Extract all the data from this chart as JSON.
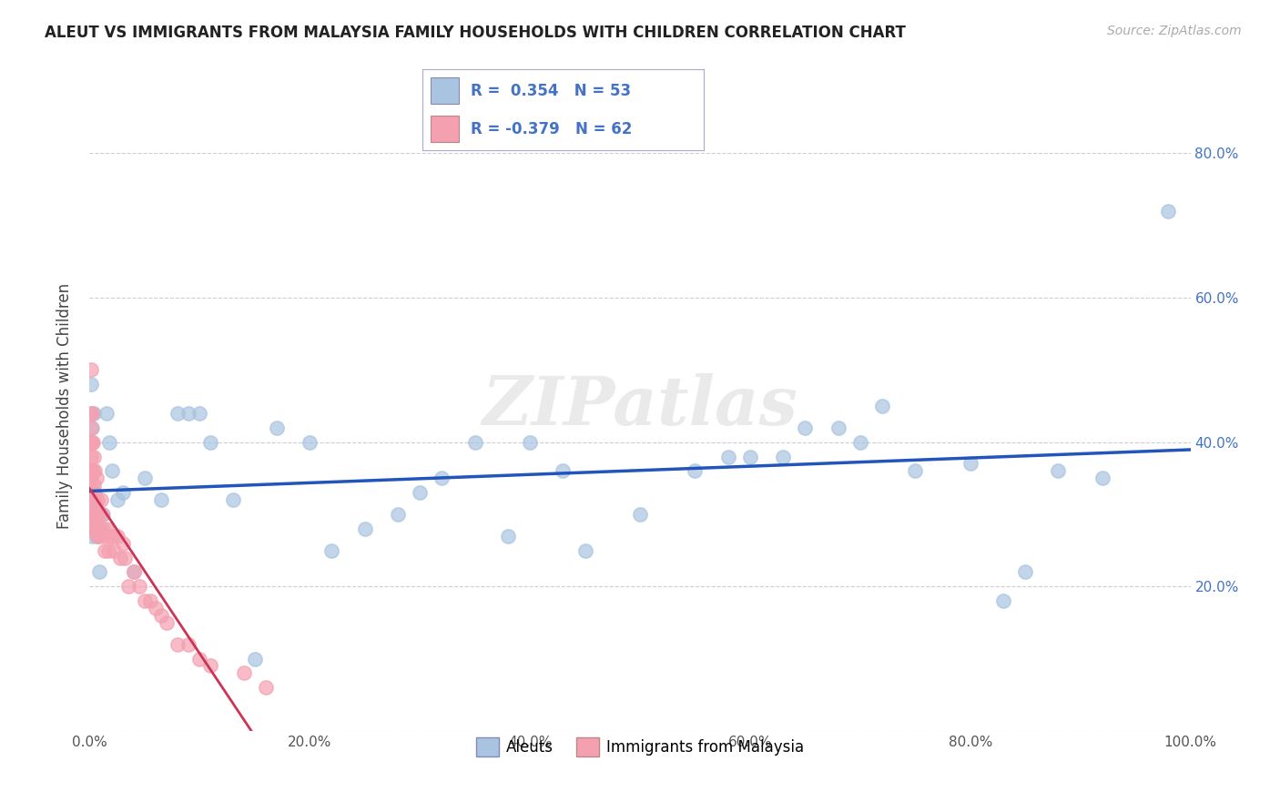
{
  "title": "ALEUT VS IMMIGRANTS FROM MALAYSIA FAMILY HOUSEHOLDS WITH CHILDREN CORRELATION CHART",
  "source": "Source: ZipAtlas.com",
  "ylabel": "Family Households with Children",
  "legend_labels": [
    "Aleuts",
    "Immigrants from Malaysia"
  ],
  "r_aleuts": 0.354,
  "n_aleuts": 53,
  "r_malaysia": -0.379,
  "n_malaysia": 62,
  "aleuts_color": "#a8c4e0",
  "malaysia_color": "#f4a0b0",
  "aleuts_line_color": "#2255bb",
  "malaysia_line_color": "#cc3355",
  "background_color": "#ffffff",
  "watermark": "ZIPatlas",
  "aleuts_x": [
    0.001,
    0.002,
    0.002,
    0.003,
    0.004,
    0.005,
    0.006,
    0.007,
    0.008,
    0.009,
    0.012,
    0.015,
    0.018,
    0.02,
    0.025,
    0.03,
    0.04,
    0.05,
    0.065,
    0.08,
    0.09,
    0.1,
    0.11,
    0.13,
    0.15,
    0.17,
    0.2,
    0.22,
    0.25,
    0.28,
    0.3,
    0.32,
    0.35,
    0.38,
    0.4,
    0.43,
    0.45,
    0.5,
    0.55,
    0.58,
    0.6,
    0.63,
    0.65,
    0.68,
    0.7,
    0.72,
    0.75,
    0.8,
    0.83,
    0.85,
    0.88,
    0.92,
    0.98
  ],
  "aleuts_y": [
    0.48,
    0.42,
    0.27,
    0.31,
    0.44,
    0.33,
    0.27,
    0.28,
    0.28,
    0.22,
    0.3,
    0.44,
    0.4,
    0.36,
    0.32,
    0.33,
    0.22,
    0.35,
    0.32,
    0.44,
    0.44,
    0.44,
    0.4,
    0.32,
    0.1,
    0.42,
    0.4,
    0.25,
    0.28,
    0.3,
    0.33,
    0.35,
    0.4,
    0.27,
    0.4,
    0.36,
    0.25,
    0.3,
    0.36,
    0.38,
    0.38,
    0.38,
    0.42,
    0.42,
    0.4,
    0.45,
    0.36,
    0.37,
    0.18,
    0.22,
    0.36,
    0.35,
    0.72
  ],
  "malaysia_x": [
    0.001,
    0.001,
    0.001,
    0.001,
    0.001,
    0.001,
    0.001,
    0.001,
    0.001,
    0.001,
    0.001,
    0.002,
    0.002,
    0.002,
    0.002,
    0.002,
    0.002,
    0.003,
    0.003,
    0.003,
    0.003,
    0.004,
    0.004,
    0.004,
    0.005,
    0.005,
    0.005,
    0.006,
    0.006,
    0.007,
    0.007,
    0.008,
    0.008,
    0.009,
    0.01,
    0.011,
    0.012,
    0.013,
    0.014,
    0.015,
    0.017,
    0.018,
    0.02,
    0.022,
    0.025,
    0.028,
    0.03,
    0.032,
    0.035,
    0.04,
    0.045,
    0.05,
    0.055,
    0.06,
    0.065,
    0.07,
    0.08,
    0.09,
    0.1,
    0.11,
    0.14,
    0.16
  ],
  "malaysia_y": [
    0.5,
    0.44,
    0.42,
    0.4,
    0.38,
    0.36,
    0.35,
    0.33,
    0.31,
    0.3,
    0.28,
    0.44,
    0.4,
    0.36,
    0.33,
    0.3,
    0.28,
    0.4,
    0.36,
    0.33,
    0.3,
    0.38,
    0.34,
    0.3,
    0.36,
    0.32,
    0.28,
    0.35,
    0.3,
    0.32,
    0.27,
    0.3,
    0.27,
    0.28,
    0.32,
    0.3,
    0.28,
    0.27,
    0.25,
    0.28,
    0.25,
    0.27,
    0.27,
    0.25,
    0.27,
    0.24,
    0.26,
    0.24,
    0.2,
    0.22,
    0.2,
    0.18,
    0.18,
    0.17,
    0.16,
    0.15,
    0.12,
    0.12,
    0.1,
    0.09,
    0.08,
    0.06
  ],
  "xlim": [
    0.0,
    1.0
  ],
  "ylim": [
    0.0,
    0.9
  ],
  "xticks": [
    0.0,
    0.2,
    0.4,
    0.6,
    0.8,
    1.0
  ],
  "xticklabels": [
    "0.0%",
    "20.0%",
    "40.0%",
    "60.0%",
    "80.0%",
    "100.0%"
  ],
  "yticks_right": [
    0.0,
    0.2,
    0.4,
    0.6,
    0.8
  ],
  "yticklabels_right": [
    "",
    "20.0%",
    "40.0%",
    "60.0%",
    "80.0%"
  ],
  "grid_color": "#ccccdd",
  "figsize": [
    14.06,
    8.92
  ],
  "dpi": 100
}
